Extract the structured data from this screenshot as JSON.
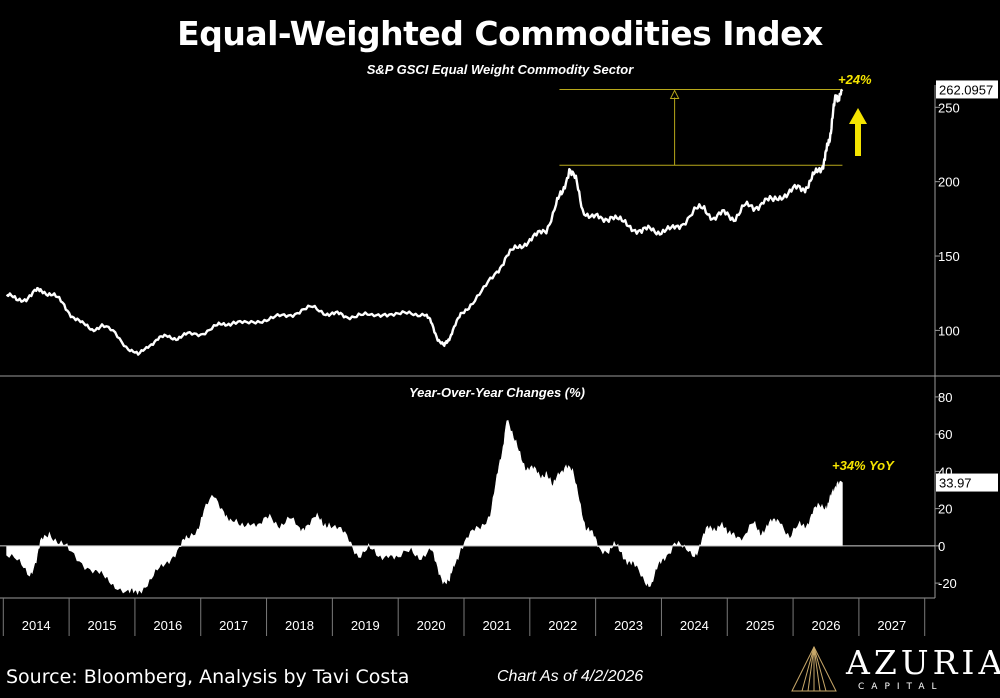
{
  "title": "Equal-Weighted Commodities Index",
  "subtitle": "S&P GSCI Equal Weight Commodity Sector",
  "footer": {
    "source": "Source: Bloomberg, Analysis by Tavi Costa",
    "as_of": "Chart As of 4/2/2026",
    "logo_word": "AZURIA",
    "logo_sub": "CAPITAL"
  },
  "colors": {
    "background": "#000000",
    "line": "#ffffff",
    "highlight": "#f5e400",
    "guide": "#b8a81a",
    "axis": "#8a8a8a"
  },
  "chart_data": [
    {
      "type": "line",
      "title": "S&P GSCI Equal Weight Commodity Sector",
      "ylim": [
        70,
        265
      ],
      "yticks": [
        "100",
        "150",
        "200",
        "250"
      ],
      "last_value_label": "262.0957",
      "annotation": "+24%",
      "annotation_range": [
        211,
        262
      ],
      "x": [
        2013.55,
        2013.7,
        2013.85,
        2014.0,
        2014.1,
        2014.25,
        2014.4,
        2014.55,
        2014.7,
        2014.85,
        2015.0,
        2015.2,
        2015.4,
        2015.55,
        2015.7,
        2015.85,
        2016.0,
        2016.15,
        2016.3,
        2016.5,
        2016.7,
        2016.85,
        2017.0,
        2017.2,
        2017.4,
        2017.6,
        2017.8,
        2018.0,
        2018.2,
        2018.4,
        2018.55,
        2018.7,
        2018.9,
        2019.1,
        2019.3,
        2019.5,
        2019.7,
        2019.9,
        2020.0,
        2020.1,
        2020.2,
        2020.25,
        2020.33,
        2020.45,
        2020.6,
        2020.8,
        2021.0,
        2021.15,
        2021.3,
        2021.45,
        2021.6,
        2021.75,
        2021.9,
        2022.0,
        2022.1,
        2022.2,
        2022.3,
        2022.45,
        2022.6,
        2022.75,
        2022.9,
        2023.05,
        2023.2,
        2023.35,
        2023.5,
        2023.65,
        2023.8,
        2024.0,
        2024.15,
        2024.3,
        2024.45,
        2024.6,
        2024.75,
        2024.9,
        2025.05,
        2025.2,
        2025.35,
        2025.5,
        2025.65,
        2025.75,
        2025.85,
        2025.95,
        2026.0,
        2026.05,
        2026.1,
        2026.15,
        2026.2,
        2026.25
      ],
      "values": [
        124,
        120,
        122,
        126,
        127,
        124,
        118,
        110,
        104,
        101,
        103,
        98,
        88,
        83,
        90,
        94,
        96,
        95,
        97,
        98,
        102,
        104,
        106,
        104,
        107,
        108,
        110,
        113,
        115,
        112,
        111,
        109,
        111,
        109,
        112,
        110,
        112,
        111,
        105,
        95,
        89,
        93,
        100,
        110,
        118,
        127,
        140,
        150,
        155,
        160,
        163,
        168,
        185,
        192,
        210,
        200,
        182,
        176,
        174,
        178,
        172,
        170,
        166,
        168,
        167,
        167,
        172,
        180,
        182,
        176,
        178,
        176,
        183,
        182,
        188,
        186,
        192,
        194,
        195,
        200,
        205,
        212,
        218,
        228,
        245,
        255,
        260,
        262
      ]
    },
    {
      "type": "area",
      "title": "Year-Over-Year Changes (%)",
      "ylim": [
        -28,
        88
      ],
      "yticks": [
        "-20",
        "0",
        "20",
        "40",
        "60",
        "80"
      ],
      "last_value_label": "33.97",
      "annotation": "+34% YoY",
      "x": [
        2013.55,
        2013.75,
        2013.9,
        2014.0,
        2014.08,
        2014.2,
        2014.35,
        2014.5,
        2014.7,
        2014.9,
        2015.05,
        2015.2,
        2015.4,
        2015.5,
        2015.6,
        2015.75,
        2015.9,
        2016.05,
        2016.2,
        2016.3,
        2016.45,
        2016.55,
        2016.7,
        2016.85,
        2016.95,
        2017.1,
        2017.25,
        2017.4,
        2017.55,
        2017.7,
        2017.85,
        2018.0,
        2018.1,
        2018.25,
        2018.35,
        2018.45,
        2018.6,
        2018.75,
        2018.9,
        2019.05,
        2019.2,
        2019.35,
        2019.5,
        2019.7,
        2019.85,
        2020.0,
        2020.1,
        2020.2,
        2020.28,
        2020.35,
        2020.45,
        2020.6,
        2020.75,
        2020.9,
        2021.0,
        2021.08,
        2021.15,
        2021.25,
        2021.35,
        2021.45,
        2021.55,
        2021.65,
        2021.75,
        2021.85,
        2021.95,
        2022.05,
        2022.15,
        2022.25,
        2022.35,
        2022.45,
        2022.55,
        2022.7,
        2022.8,
        2022.9,
        2023.0,
        2023.1,
        2023.25,
        2023.35,
        2023.45,
        2023.55,
        2023.7,
        2023.85,
        2024.0,
        2024.1,
        2024.2,
        2024.3,
        2024.4,
        2024.5,
        2024.6,
        2024.75,
        2024.9,
        2025.0,
        2025.1,
        2025.2,
        2025.3,
        2025.45,
        2025.6,
        2025.7,
        2025.8,
        2025.9,
        2026.0,
        2026.05,
        2026.12,
        2026.18,
        2026.25
      ],
      "values": [
        -5,
        -10,
        -14,
        -8,
        2,
        8,
        1,
        -3,
        -8,
        -14,
        -18,
        -20,
        -25,
        -26,
        -22,
        -18,
        -12,
        -5,
        0,
        3,
        10,
        18,
        26,
        20,
        12,
        10,
        14,
        10,
        15,
        12,
        14,
        8,
        12,
        15,
        11,
        13,
        8,
        3,
        -4,
        -2,
        -6,
        -3,
        -8,
        -2,
        -5,
        -3,
        -12,
        -18,
        -20,
        -10,
        0,
        5,
        10,
        18,
        35,
        50,
        70,
        56,
        50,
        42,
        40,
        38,
        40,
        30,
        40,
        44,
        38,
        26,
        10,
        5,
        0,
        -2,
        -1,
        -3,
        -8,
        -12,
        -18,
        -20,
        -12,
        -5,
        2,
        -3,
        -4,
        2,
        8,
        10,
        12,
        5,
        8,
        4,
        11,
        8,
        10,
        12,
        15,
        4,
        10,
        12,
        18,
        20,
        22,
        24,
        28,
        36,
        34
      ]
    }
  ],
  "x_axis": {
    "labels": [
      "2014",
      "2015",
      "2016",
      "2017",
      "2018",
      "2019",
      "2020",
      "2021",
      "2022",
      "2023",
      "2024",
      "2025",
      "2026",
      "2027"
    ],
    "xlim": [
      2013.45,
      2027.55
    ]
  }
}
